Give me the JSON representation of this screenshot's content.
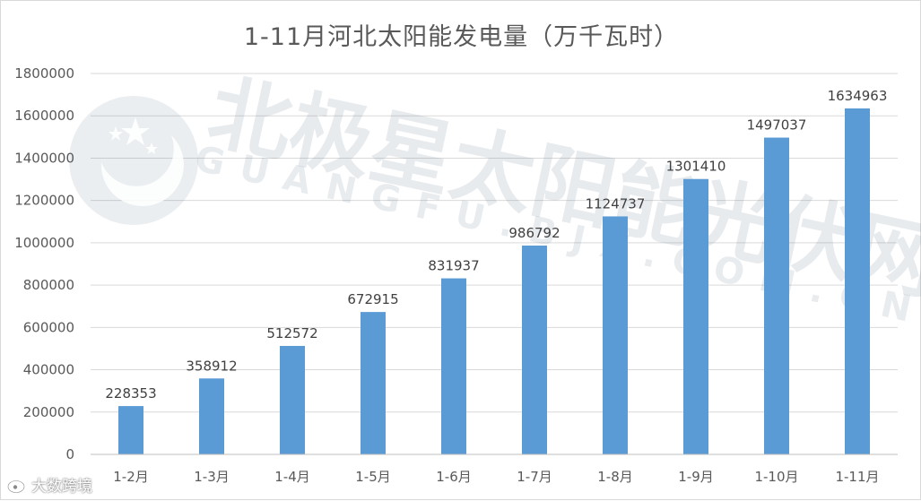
{
  "chart_data": {
    "type": "bar",
    "title": "1-11月河北太阳能发电量（万千瓦时）",
    "categories": [
      "1-2月",
      "1-3月",
      "1-4月",
      "1-5月",
      "1-6月",
      "1-7月",
      "1-8月",
      "1-9月",
      "1-10月",
      "1-11月"
    ],
    "values": [
      228353,
      358912,
      512572,
      672915,
      831937,
      986792,
      1124737,
      1301410,
      1497037,
      1634963
    ],
    "ylim": [
      0,
      1800000
    ],
    "yticks": [
      0,
      200000,
      400000,
      600000,
      800000,
      1000000,
      1200000,
      1400000,
      1600000,
      1800000
    ],
    "grid": true,
    "bar_color": "#5b9bd5",
    "data_labels": true
  },
  "watermark": {
    "text": "北极星太阳能光伏网",
    "subtext": "GUANGFU.BJX.COM.CN",
    "logo_icon": "north-star-logo-icon"
  },
  "source_mark": {
    "text": "大数跨境",
    "icon": "weibo-icon"
  }
}
